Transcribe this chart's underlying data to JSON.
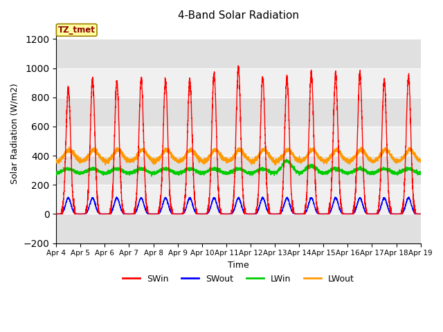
{
  "title": "4-Band Solar Radiation",
  "xlabel": "Time",
  "ylabel": "Solar Radiation (W/m2)",
  "ylim": [
    -200,
    1300
  ],
  "yticks": [
    -200,
    0,
    200,
    400,
    600,
    800,
    1000,
    1200
  ],
  "xlim": [
    0,
    15
  ],
  "xtick_labels": [
    "Apr 4",
    "Apr 5",
    "Apr 6",
    "Apr 7",
    "Apr 8",
    "Apr 9",
    "Apr 10",
    "Apr 11",
    "Apr 12",
    "Apr 13",
    "Apr 14",
    "Apr 15",
    "Apr 16",
    "Apr 17",
    "Apr 18",
    "Apr 19"
  ],
  "colors": {
    "SWin": "#ff0000",
    "SWout": "#0000ff",
    "LWin": "#00cc00",
    "LWout": "#ff9900"
  },
  "legend_label": "TZ_tmet",
  "plot_bg": "#ffffff",
  "fig_bg": "#ffffff",
  "band_color_dark": "#e0e0e0",
  "band_color_light": "#f0f0f0",
  "linewidth": 1.0,
  "n_days": 15,
  "pts_per_day": 288,
  "peak_heights": [
    860,
    920,
    910,
    920,
    910,
    920,
    960,
    1000,
    940,
    925,
    970,
    950,
    960,
    920,
    940
  ]
}
